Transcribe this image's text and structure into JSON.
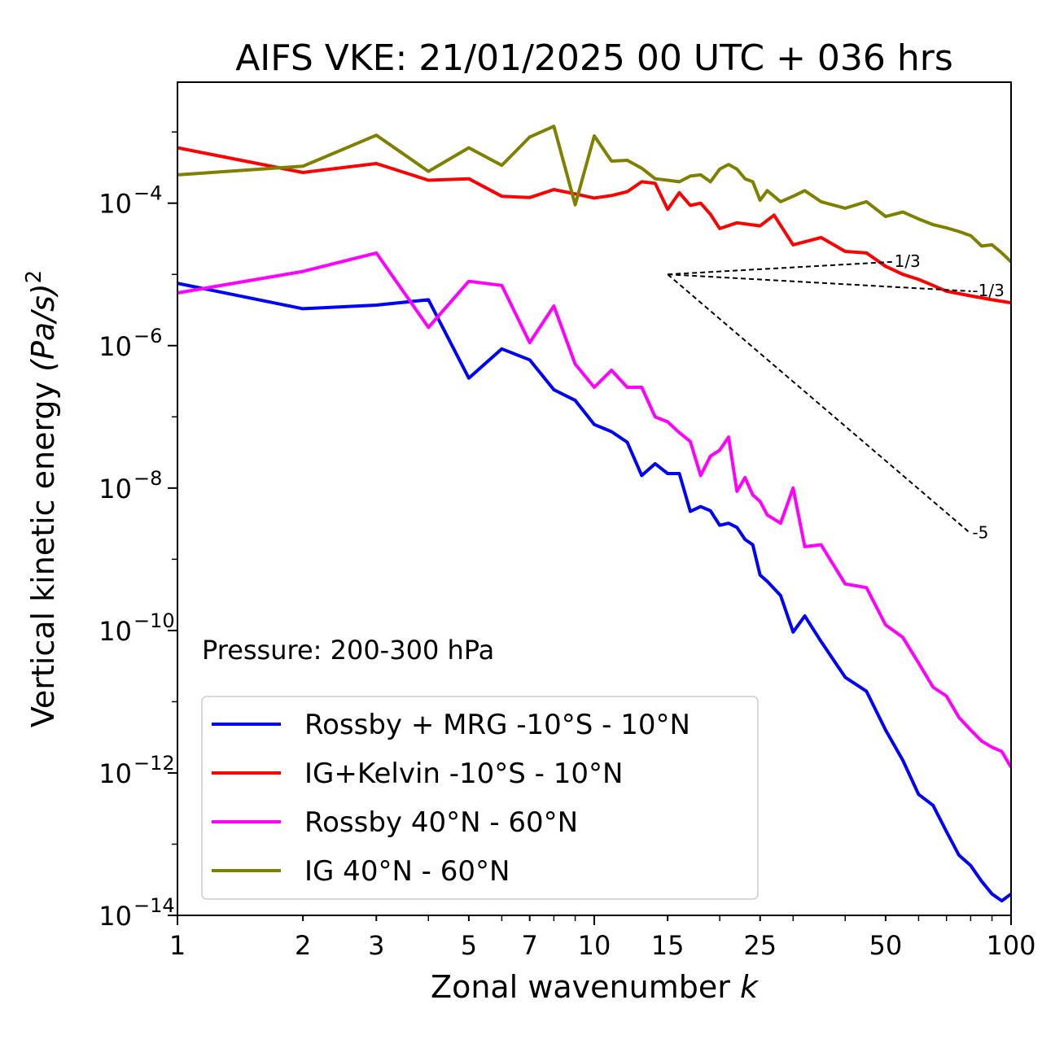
{
  "chart_data": {
    "type": "line",
    "title": "AIFS VKE: 21/01/2025 00 UTC + 036 hrs",
    "xlabel": "Zonal wavenumber",
    "xlabel_var": "k",
    "ylabel": "Vertical kinetic energy",
    "ylabel_unit": "(Pa/s)",
    "ylabel_exp": "2",
    "xscale": "log",
    "yscale": "log",
    "xlim": [
      1,
      100
    ],
    "ylim": [
      1e-14,
      0.005
    ],
    "grid": false,
    "legend_position": "lower-left",
    "annotation": "Pressure: 200-300 hPa",
    "xticks": [
      {
        "value": 1,
        "label": "1"
      },
      {
        "value": 2,
        "label": "2"
      },
      {
        "value": 3,
        "label": "3"
      },
      {
        "value": 5,
        "label": "5"
      },
      {
        "value": 7,
        "label": "7"
      },
      {
        "value": 10,
        "label": "10"
      },
      {
        "value": 15,
        "label": "15"
      },
      {
        "value": 25,
        "label": "25"
      },
      {
        "value": 50,
        "label": "50"
      },
      {
        "value": 100,
        "label": "100"
      }
    ],
    "yticks": [
      {
        "value": 0.0001,
        "base": "10",
        "exp": "−4"
      },
      {
        "value": 1e-06,
        "base": "10",
        "exp": "−6"
      },
      {
        "value": 1e-08,
        "base": "10",
        "exp": "−8"
      },
      {
        "value": 1e-10,
        "base": "10",
        "exp": "−10"
      },
      {
        "value": 1e-12,
        "base": "10",
        "exp": "−12"
      },
      {
        "value": 1e-14,
        "base": "10",
        "exp": "−14"
      }
    ],
    "reference_lines": [
      {
        "label": "-1/3",
        "x": [
          15,
          80
        ],
        "y": [
          1e-05,
          5.8e-06
        ]
      },
      {
        "label": "1/3",
        "x": [
          15,
          52
        ],
        "y": [
          1e-05,
          1.5e-05
        ]
      },
      {
        "label": "-5",
        "x": [
          15,
          80
        ],
        "y": [
          1e-05,
          2.3e-09
        ]
      }
    ],
    "series": [
      {
        "name": "Rossby + MRG -10°S - 10°N",
        "color": "#0000ff",
        "x": [
          1,
          2,
          3,
          4,
          5,
          6,
          7,
          8,
          9,
          10,
          11,
          12,
          13,
          14,
          15,
          16,
          17,
          18,
          19,
          20,
          21,
          22,
          23,
          24,
          25,
          26,
          28,
          30,
          32,
          35,
          40,
          45,
          50,
          55,
          60,
          65,
          70,
          75,
          80,
          85,
          90,
          95,
          100
        ],
        "y": [
          7.5e-06,
          3.3e-06,
          3.7e-06,
          4.4e-06,
          3.5e-07,
          9e-07,
          6.3e-07,
          2.4e-07,
          1.7e-07,
          7.8e-08,
          6.2e-08,
          4.4e-08,
          1.5e-08,
          2.2e-08,
          1.6e-08,
          1.6e-08,
          4.7e-09,
          5.5e-09,
          4.8e-09,
          3e-09,
          3.2e-09,
          2.8e-09,
          1.9e-09,
          1.6e-09,
          6e-10,
          4.9e-10,
          3.1e-10,
          9.5e-11,
          1.6e-10,
          7e-11,
          2.2e-11,
          1.4e-11,
          4e-12,
          1.5e-12,
          5e-13,
          3.5e-13,
          1.5e-13,
          7e-14,
          5e-14,
          3e-14,
          2e-14,
          1.6e-14,
          2e-14
        ]
      },
      {
        "name": "IG+Kelvin -10°S - 10°N",
        "color": "#ff0000",
        "x": [
          1,
          2,
          3,
          4,
          5,
          6,
          7,
          8,
          9,
          10,
          11,
          12,
          13,
          14,
          15,
          16,
          17,
          18,
          19,
          20,
          22,
          25,
          27,
          30,
          35,
          40,
          45,
          50,
          55,
          60,
          65,
          70,
          80,
          90,
          100
        ],
        "y": [
          0.0006,
          0.00027,
          0.00036,
          0.00021,
          0.00022,
          0.000125,
          0.00012,
          0.000155,
          0.000135,
          0.000118,
          0.000128,
          0.000145,
          0.0002,
          0.00019,
          8.2e-05,
          0.00014,
          9.3e-05,
          0.0001,
          7e-05,
          4.4e-05,
          5.3e-05,
          4.8e-05,
          6.8e-05,
          2.6e-05,
          3.3e-05,
          2.1e-05,
          2e-05,
          1.3e-05,
          1e-05,
          8.5e-06,
          7e-06,
          5.8e-06,
          5e-06,
          4.4e-06,
          4e-06
        ]
      },
      {
        "name": "Rossby 40°N - 60°N",
        "color": "#ff00ff",
        "x": [
          1,
          2,
          3,
          4,
          5,
          6,
          7,
          8,
          9,
          10,
          11,
          12,
          13,
          14,
          15,
          16,
          17,
          18,
          19,
          20,
          21,
          22,
          23,
          24,
          25,
          26,
          28,
          30,
          32,
          35,
          40,
          45,
          50,
          55,
          60,
          65,
          70,
          75,
          80,
          85,
          90,
          95,
          100
        ],
        "y": [
          5.5e-06,
          1.1e-05,
          2e-05,
          1.8e-06,
          8e-06,
          7e-06,
          1.1e-06,
          3.6e-06,
          5.5e-07,
          2.6e-07,
          4.5e-07,
          2.6e-07,
          2.6e-07,
          1e-07,
          8.5e-08,
          6e-08,
          4.5e-08,
          1.5e-08,
          2.8e-08,
          3.4e-08,
          5.2e-08,
          9e-09,
          1.4e-08,
          8e-09,
          6.5e-09,
          4.2e-09,
          3.2e-09,
          1e-08,
          1.5e-09,
          1.6e-09,
          4.5e-10,
          4e-10,
          1.2e-10,
          8e-11,
          3.5e-11,
          1.6e-11,
          1.2e-11,
          6e-12,
          4e-12,
          2.8e-12,
          2.3e-12,
          2e-12,
          1.2e-12
        ]
      },
      {
        "name": "IG 40°N - 60°N",
        "color": "#808000",
        "x": [
          1,
          2,
          3,
          4,
          5,
          6,
          7,
          8,
          9,
          10,
          11,
          12,
          13,
          14,
          15,
          16,
          17,
          18,
          19,
          20,
          21,
          22,
          23,
          24,
          25,
          26,
          28,
          30,
          32,
          35,
          40,
          45,
          50,
          55,
          60,
          65,
          70,
          75,
          80,
          85,
          90,
          95,
          100
        ],
        "y": [
          0.00025,
          0.00033,
          0.0009,
          0.00028,
          0.0006,
          0.00034,
          0.00085,
          0.0012,
          9.5e-05,
          0.00088,
          0.00039,
          0.0004,
          0.00031,
          0.00022,
          0.00021,
          0.0002,
          0.00024,
          0.00025,
          0.0002,
          0.0003,
          0.00035,
          0.0003,
          0.00022,
          0.0002,
          0.00011,
          0.00015,
          0.000105,
          0.000125,
          0.00015,
          0.000105,
          8.5e-05,
          0.000105,
          6.5e-05,
          7.5e-05,
          6e-05,
          5e-05,
          4.5e-05,
          4e-05,
          3.5e-05,
          2.5e-05,
          2.6e-05,
          2e-05,
          1.5e-05
        ]
      }
    ]
  }
}
